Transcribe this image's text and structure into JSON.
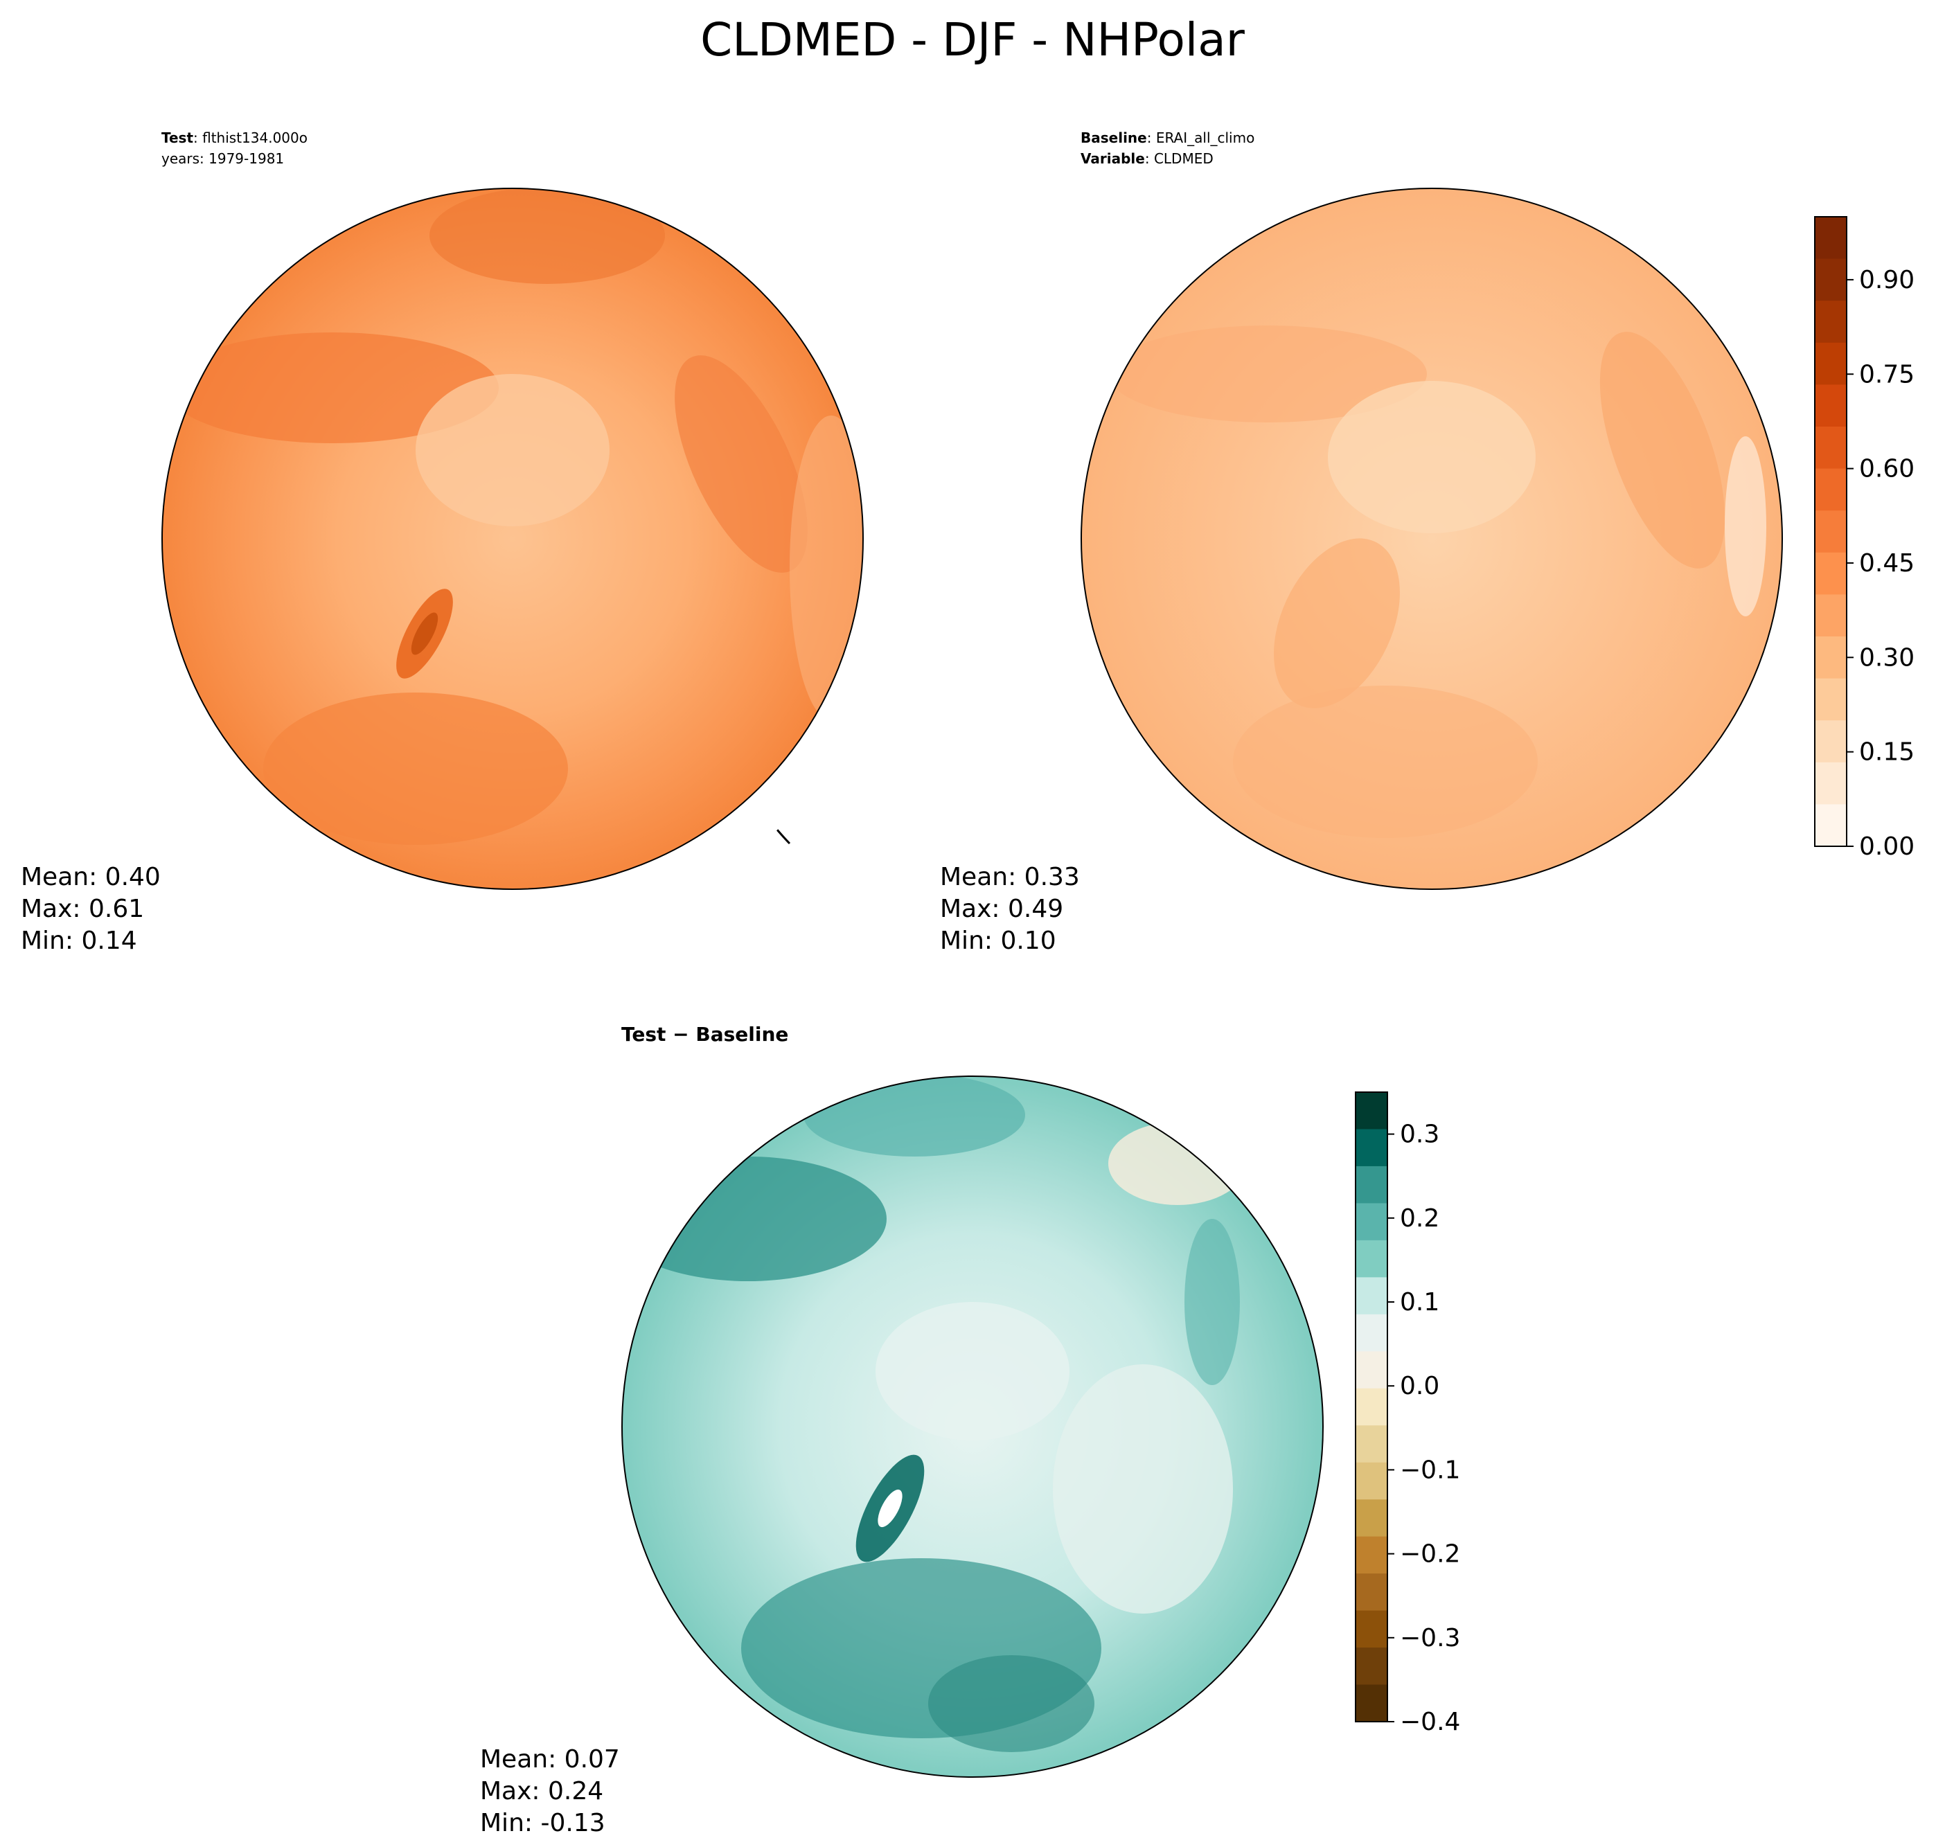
{
  "figure": {
    "title": "CLDMED - DJF - NHPolar"
  },
  "panels": {
    "test": {
      "label_bold": "Test",
      "label_text": ": flthist134.000o",
      "years": "years: 1979-1981",
      "mean": "Mean:  0.40",
      "max": "Max:  0.61",
      "min": "Min:  0.14"
    },
    "baseline": {
      "label_bold": "Baseline",
      "label_text": ": ERAI_all_climo",
      "variable_bold": "Variable",
      "variable_text": ": CLDMED",
      "mean": "Mean:  0.33",
      "max": "Max:  0.49",
      "min": "Min:  0.10"
    },
    "diff": {
      "title": "Test − Baseline",
      "mean": "Mean:  0.07",
      "max": "Max:  0.24",
      "min": "Min: -0.13"
    }
  },
  "colorbars": {
    "main": {
      "ticks": [
        "0.00",
        "0.15",
        "0.30",
        "0.45",
        "0.60",
        "0.75",
        "0.90"
      ],
      "tick_values": [
        0.0,
        0.15,
        0.3,
        0.45,
        0.6,
        0.75,
        0.9
      ],
      "range": [
        0.0,
        1.0
      ],
      "colors": [
        "#fff5eb",
        "#fee9d3",
        "#fddbb8",
        "#fdcb9a",
        "#fdb97f",
        "#fda465",
        "#fd914d",
        "#f67d3a",
        "#ee6a28",
        "#e25818",
        "#d4480c",
        "#bd3e03",
        "#a53603",
        "#8c2d04",
        "#7f2704"
      ]
    },
    "diff": {
      "ticks": [
        "0.3",
        "0.2",
        "0.1",
        "0.0",
        "−0.1",
        "−0.2",
        "−0.3",
        "−0.4"
      ],
      "tick_values": [
        0.3,
        0.2,
        0.1,
        0.0,
        -0.1,
        -0.2,
        -0.3,
        -0.4
      ],
      "range": [
        -0.4,
        0.35
      ],
      "colors": [
        "#003c30",
        "#01665e",
        "#35978f",
        "#5ab4ac",
        "#80cdc1",
        "#c7eae5",
        "#e9f2f0",
        "#f5f0e4",
        "#f6e8c3",
        "#e8d39b",
        "#dfc27d",
        "#c9a049",
        "#bf812d",
        "#a6691f",
        "#8c510a",
        "#6f400a",
        "#543005"
      ]
    }
  }
}
